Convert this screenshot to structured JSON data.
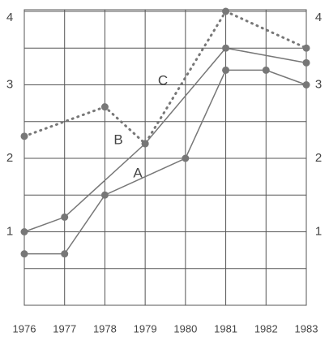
{
  "chart_data": {
    "type": "line",
    "xticks": [
      1976,
      1977,
      1978,
      1979,
      1980,
      1981,
      1982,
      1983
    ],
    "xlim": [
      1976,
      1983
    ],
    "ylim": [
      0,
      4
    ],
    "yticks": [
      1,
      2,
      3,
      4
    ],
    "minor_yticks": [
      0.5,
      1.5,
      2.5,
      3.5
    ],
    "grid": true,
    "series": [
      {
        "name": "A",
        "color": "#777777",
        "style": "solid",
        "x": [
          1976,
          1977,
          1978,
          1980,
          1981,
          1982,
          1983
        ],
        "values": [
          0.7,
          0.7,
          1.5,
          2.0,
          3.2,
          3.2,
          3.0
        ]
      },
      {
        "name": "B",
        "color": "#777777",
        "style": "solid",
        "x": [
          1976,
          1977,
          1979,
          1981,
          1983
        ],
        "values": [
          1.0,
          1.2,
          2.2,
          3.5,
          3.3
        ]
      },
      {
        "name": "C",
        "color": "#777777",
        "style": "dotted",
        "x": [
          1976,
          1978,
          1979,
          1981,
          1983
        ],
        "values": [
          2.3,
          2.7,
          2.2,
          4.0,
          3.5
        ]
      }
    ]
  }
}
